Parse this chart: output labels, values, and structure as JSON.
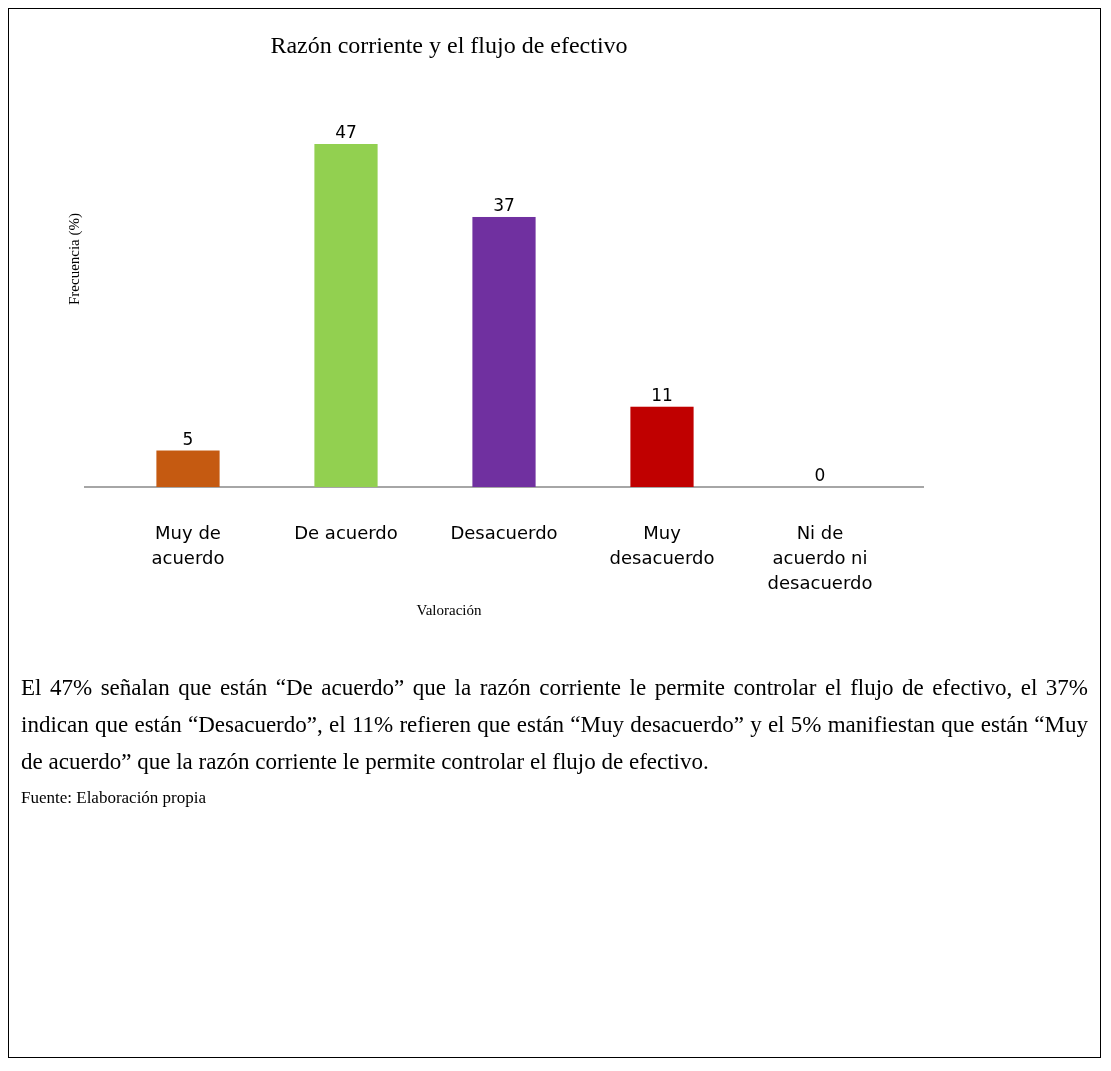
{
  "chart_data": {
    "type": "bar",
    "title": "Razón corriente y el flujo de efectivo",
    "xlabel": "Valoración",
    "ylabel": "Frecuencia (%)",
    "categories": [
      "Muy de acuerdo",
      "De acuerdo",
      "Desacuerdo",
      "Muy desacuerdo",
      "Ni de acuerdo ni desacuerdo"
    ],
    "values": [
      5,
      47,
      37,
      11,
      0
    ],
    "colors": [
      "#c55a11",
      "#92d050",
      "#7030a0",
      "#c00000",
      "#2f5597"
    ],
    "data_labels": true,
    "annotations": [
      "El 47% señalan que están “De acuerdo” que la razón corriente le permite controlar el flujo de efectivo, el 37% indican que están “Desacuerdo”, el 11% refieren que están “Muy desacuerdo” y el 5% manifiestan que están “Muy de acuerdo” que la razón corriente le permite controlar el flujo de efectivo.",
      "Fuente: Elaboración propia"
    ]
  }
}
